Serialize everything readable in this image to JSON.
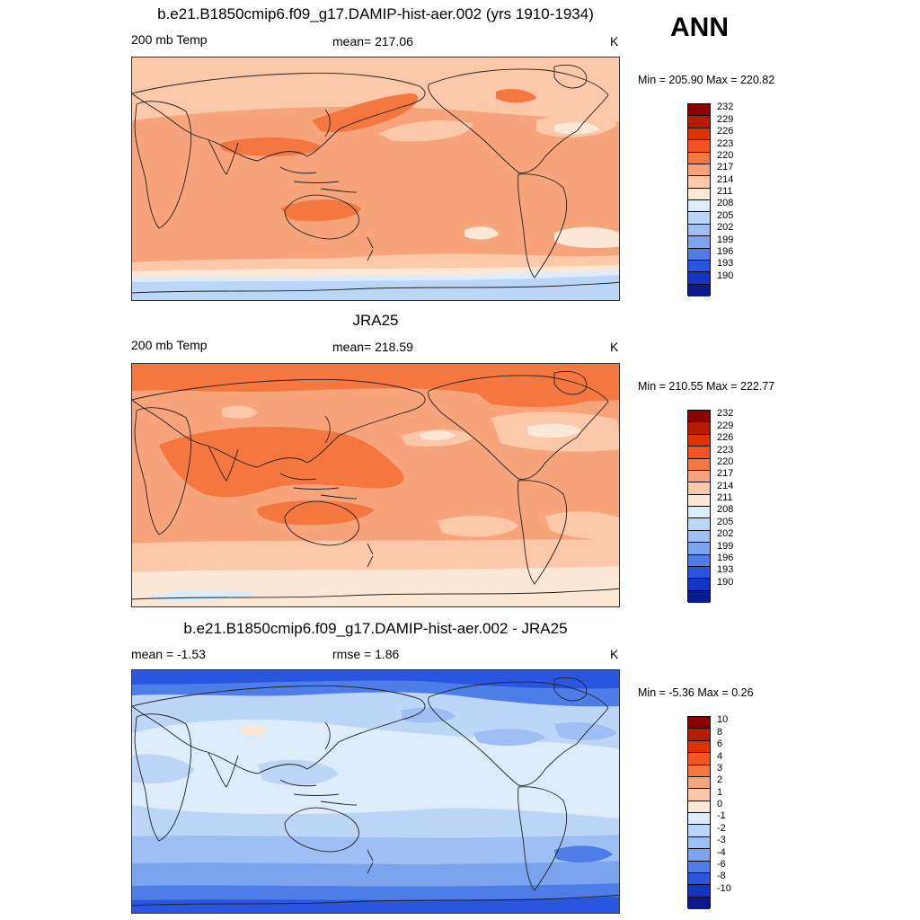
{
  "season": "ANN",
  "panels": [
    {
      "title": "b.e21.B1850cmip6.f09_g17.DAMIP-hist-aer.002 (yrs 1910-1934)",
      "left": "200 mb Temp",
      "center": "mean= 217.06",
      "units": "K",
      "minmax": "Min = 205.90 Max = 220.82",
      "map_name": "model-map"
    },
    {
      "title": "JRA25",
      "left": "200 mb Temp",
      "center": "mean= 218.59",
      "units": "K",
      "minmax": "Min = 210.55 Max = 222.77",
      "map_name": "obs-map"
    },
    {
      "title": "b.e21.B1850cmip6.f09_g17.DAMIP-hist-aer.002 - JRA25",
      "left": "mean =  -1.53",
      "center": "rmse =   1.86",
      "units": "K",
      "minmax": "Min =  -5.36 Max =   0.26",
      "map_name": "diff-map"
    }
  ],
  "colorbars": {
    "abs": {
      "labels": [
        "232",
        "229",
        "226",
        "223",
        "220",
        "217",
        "214",
        "211",
        "208",
        "205",
        "202",
        "199",
        "196",
        "193",
        "190"
      ],
      "colors": [
        "#8b0000",
        "#b81c00",
        "#dd3300",
        "#f25522",
        "#f4773f",
        "#f7a47c",
        "#fbc8a9",
        "#fde8d6",
        "#dcecfb",
        "#bcd6f7",
        "#9ebff3",
        "#7ca3ee",
        "#4e7de8",
        "#2a55df",
        "#1335c4",
        "#0b1a8c"
      ]
    },
    "diff": {
      "labels": [
        "10",
        "8",
        "6",
        "4",
        "3",
        "2",
        "1",
        "0",
        "-1",
        "-2",
        "-3",
        "-4",
        "-6",
        "-8",
        "-10"
      ],
      "colors": [
        "#8b0000",
        "#b81c00",
        "#dd3300",
        "#f25522",
        "#f4773f",
        "#f7a47c",
        "#fbc8a9",
        "#fde8d6",
        "#dcecfb",
        "#bcd6f7",
        "#9ebff3",
        "#7ca3ee",
        "#4e7de8",
        "#2a55df",
        "#1335c4",
        "#0b1a8c"
      ]
    }
  }
}
